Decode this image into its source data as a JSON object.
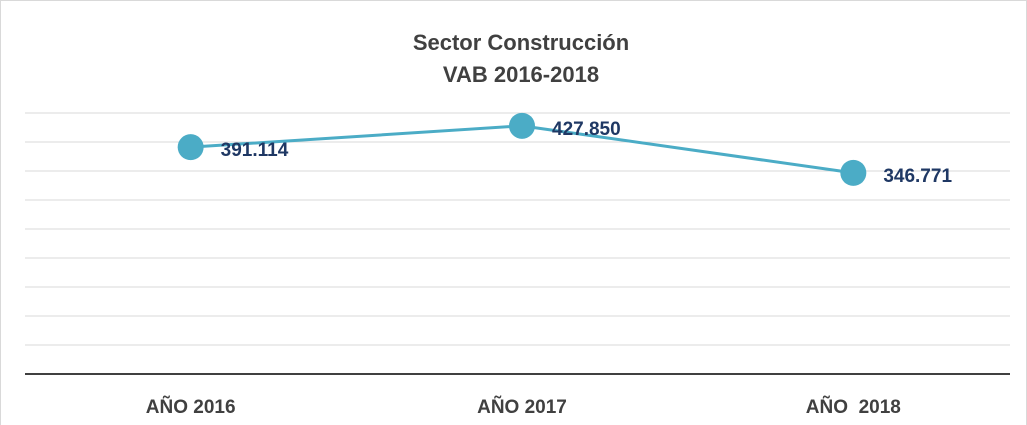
{
  "chart_data": {
    "type": "line",
    "title": "Sector Construcción",
    "subtitle": "VAB 2016-2018",
    "categories": [
      "AÑO 2016",
      "AÑO 2017",
      "AÑO  2018"
    ],
    "series": [
      {
        "name": "VAB",
        "color": "#4bacc6",
        "values": [
          391114,
          427850,
          346771
        ],
        "value_labels": [
          "391.114",
          "427.850",
          "346.771"
        ]
      }
    ],
    "ylim": [
      0,
      450000
    ],
    "yticks": [
      0,
      50000,
      100000,
      150000,
      200000,
      250000,
      300000,
      350000,
      400000,
      450000
    ],
    "grid": true
  }
}
